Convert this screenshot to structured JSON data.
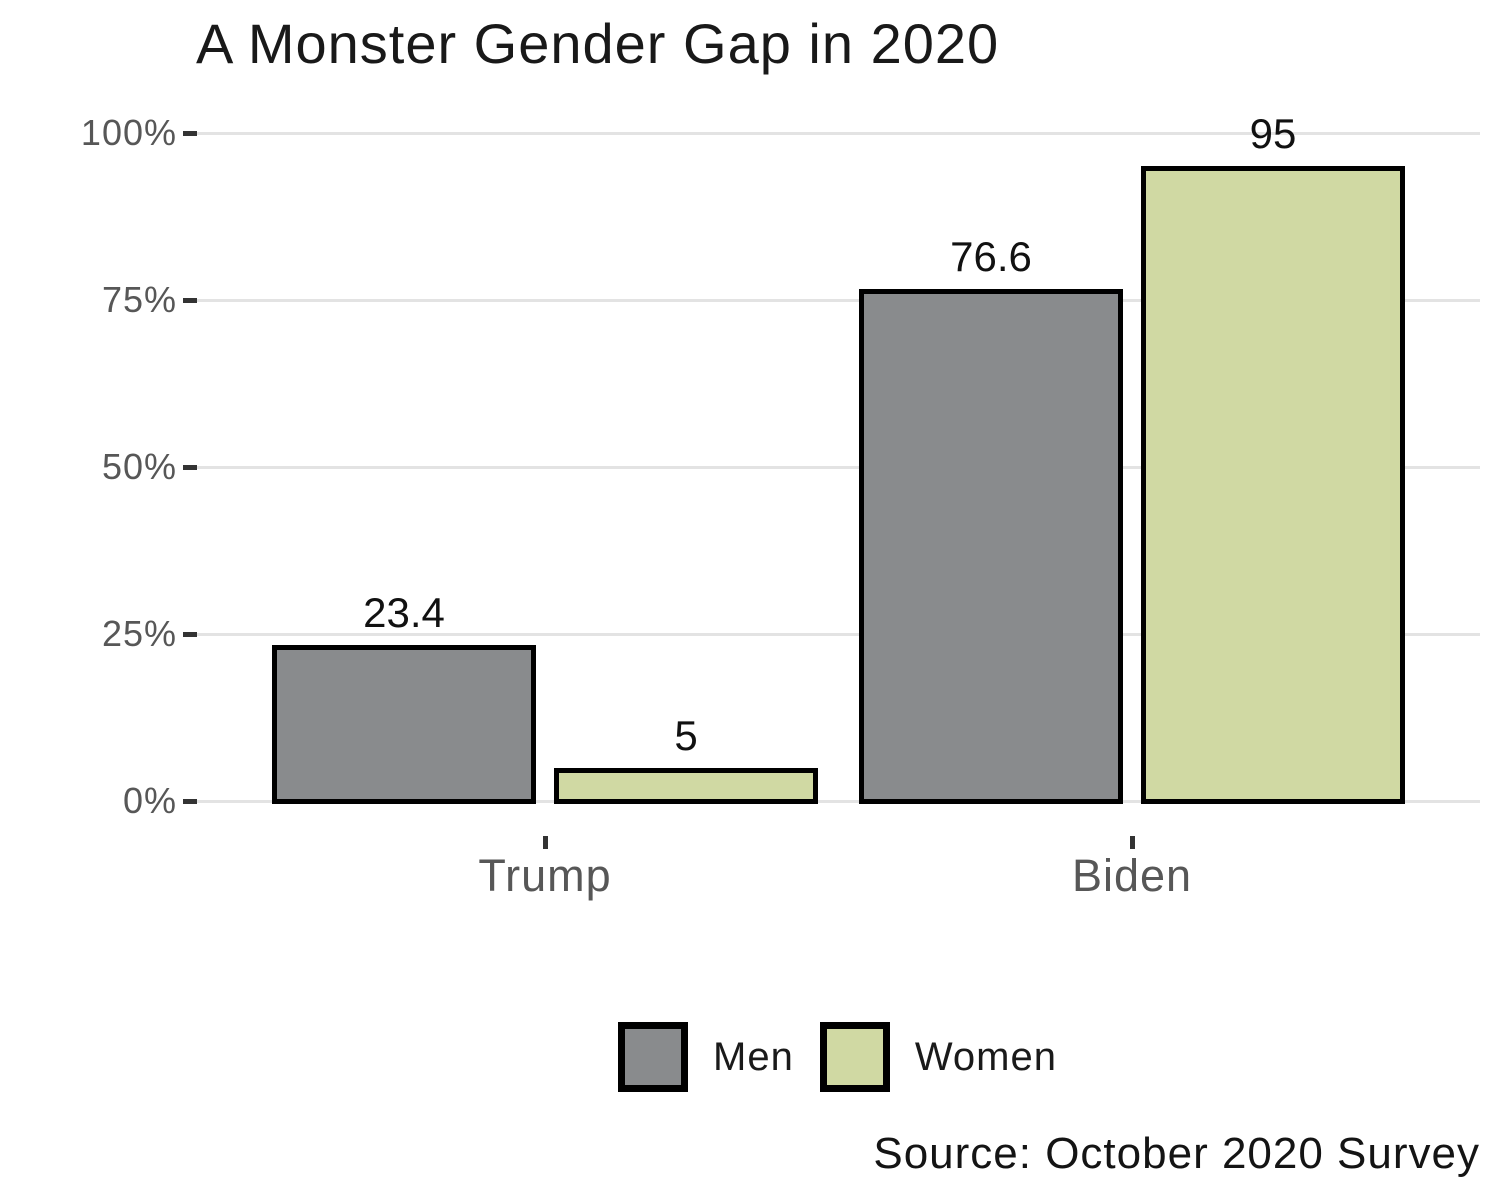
{
  "title": "A Monster Gender Gap in 2020",
  "source_note": "Source: October 2020 Survey",
  "colors": {
    "background": "#FFFFFF",
    "gridline": "#E3E3E3",
    "axis_text": "#575757",
    "tick_mark": "#333333",
    "title_text": "#191919",
    "value_label_text": "#111111",
    "bar_outline": "#000000",
    "men_fill": "#898B8D",
    "women_fill": "#D0D9A3"
  },
  "chart_data": {
    "type": "bar",
    "title": "A Monster Gender Gap in 2020",
    "categories": [
      "Trump",
      "Biden"
    ],
    "series": [
      {
        "name": "Men",
        "color": "#898B8D",
        "values": [
          23.4,
          76.6
        ],
        "labels": [
          "23.4",
          "76.6"
        ]
      },
      {
        "name": "Women",
        "color": "#D0D9A3",
        "values": [
          5,
          95
        ],
        "labels": [
          "5",
          "95"
        ]
      }
    ],
    "xlabel": "",
    "ylabel": "",
    "ylim": [
      0,
      100
    ],
    "yticks": [
      0,
      25,
      50,
      75,
      100
    ],
    "ytick_labels": [
      "0%",
      "25%",
      "50%",
      "75%",
      "100%"
    ],
    "grid": "horizontal",
    "legend_position": "bottom-center",
    "annotation": "Source: October 2020 Survey"
  }
}
